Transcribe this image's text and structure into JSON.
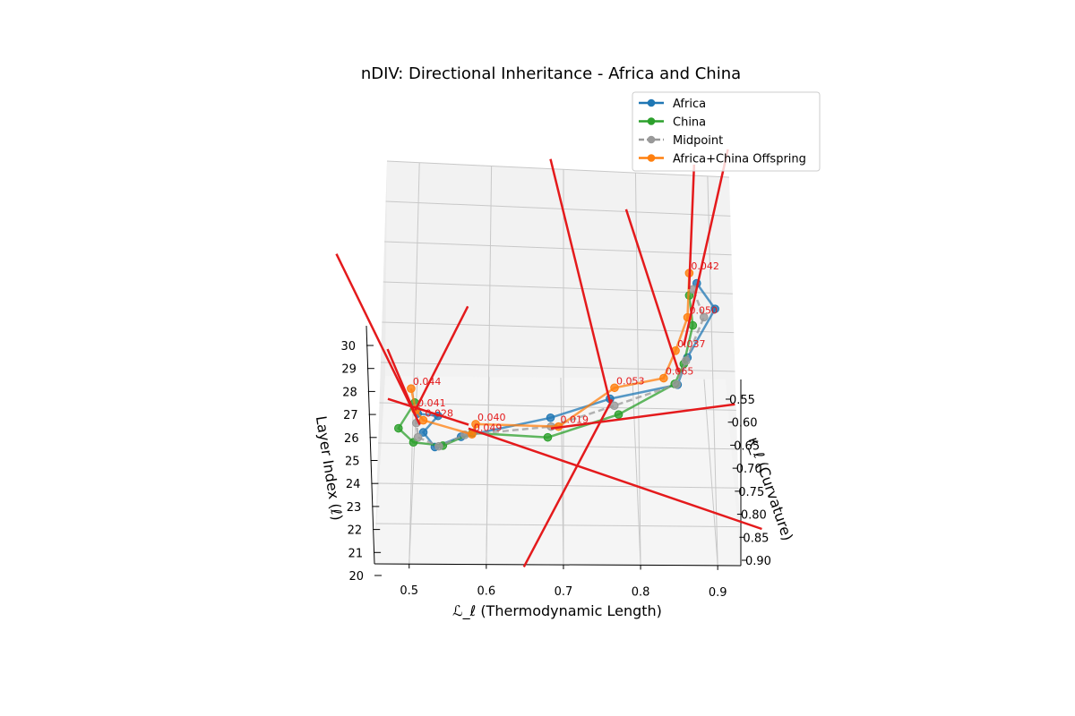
{
  "chart_data": {
    "type": "line",
    "title": "nDIV: Directional Inheritance - Africa and China",
    "xlabel": "ℒ_ℓ (Thermodynamic Length)",
    "ylabel": "κ_ℓ (Curvature)",
    "zlabel": "Layer Index (ℓ)",
    "xlim": [
      0.455,
      0.93
    ],
    "ylim": [
      0.53,
      0.91
    ],
    "zlim": [
      20,
      30
    ],
    "x_ticks": [
      "0.5",
      "0.6",
      "0.7",
      "0.8",
      "0.9"
    ],
    "y_ticks": [
      "0.55",
      "0.60",
      "0.65",
      "0.70",
      "0.75",
      "0.80",
      "0.85",
      "0.90"
    ],
    "z_ticks": [
      "20",
      "21",
      "22",
      "23",
      "24",
      "25",
      "26",
      "27",
      "28",
      "29",
      "30"
    ],
    "grid": true,
    "legend_position": "top-right",
    "series": [
      {
        "name": "Africa",
        "color": "#1f77b4",
        "style": "solid",
        "points": [
          [
            0.515,
            0.56,
            27.0
          ],
          [
            0.54,
            0.6,
            27.0
          ],
          [
            0.52,
            0.62,
            26.2
          ],
          [
            0.535,
            0.64,
            25.5
          ],
          [
            0.57,
            0.63,
            26.0
          ],
          [
            0.69,
            0.6,
            26.9
          ],
          [
            0.77,
            0.57,
            27.8
          ],
          [
            0.86,
            0.56,
            28.5
          ],
          [
            0.87,
            0.59,
            30.0
          ],
          [
            0.905,
            0.58,
            32.5
          ],
          [
            0.88,
            0.57,
            33.8
          ]
        ]
      },
      {
        "name": "China",
        "color": "#2ca02c",
        "style": "solid",
        "points": [
          [
            0.51,
            0.57,
            27.6
          ],
          [
            0.485,
            0.65,
            26.5
          ],
          [
            0.505,
            0.66,
            25.8
          ],
          [
            0.545,
            0.65,
            25.6
          ],
          [
            0.585,
            0.63,
            26.2
          ],
          [
            0.685,
            0.64,
            26.0
          ],
          [
            0.78,
            0.61,
            27.1
          ],
          [
            0.855,
            0.58,
            28.6
          ],
          [
            0.865,
            0.6,
            29.7
          ],
          [
            0.875,
            0.6,
            31.7
          ],
          [
            0.87,
            0.58,
            33.2
          ]
        ]
      },
      {
        "name": "Midpoint",
        "color": "#999999",
        "style": "dashed",
        "points": [
          [
            0.512,
            0.565,
            27.3
          ],
          [
            0.51,
            0.625,
            26.7
          ],
          [
            0.512,
            0.64,
            26.0
          ],
          [
            0.54,
            0.645,
            25.55
          ],
          [
            0.575,
            0.63,
            26.1
          ],
          [
            0.69,
            0.62,
            26.5
          ],
          [
            0.775,
            0.59,
            27.5
          ],
          [
            0.858,
            0.57,
            28.55
          ],
          [
            0.868,
            0.595,
            29.85
          ],
          [
            0.89,
            0.59,
            32.1
          ],
          [
            0.875,
            0.575,
            33.5
          ]
        ]
      },
      {
        "name": "Africa+China Offspring",
        "color": "#ff7f0e",
        "style": "solid",
        "points": [
          [
            0.505,
            0.56,
            28.3
          ],
          [
            0.51,
            0.6,
            27.3
          ],
          [
            0.52,
            0.61,
            26.8
          ],
          [
            0.585,
            0.62,
            26.1
          ],
          [
            0.59,
            0.61,
            26.6
          ],
          [
            0.7,
            0.62,
            26.5
          ],
          [
            0.775,
            0.58,
            28.4
          ],
          [
            0.84,
            0.58,
            28.9
          ],
          [
            0.855,
            0.57,
            30.3
          ],
          [
            0.87,
            0.56,
            32.0
          ],
          [
            0.87,
            0.56,
            34.3
          ]
        ]
      }
    ],
    "annotations": [
      {
        "text": "0.044",
        "point": 0
      },
      {
        "text": "0.041",
        "point": 1
      },
      {
        "text": "0.028",
        "point": 2
      },
      {
        "text": "0.049",
        "point": 3
      },
      {
        "text": "0.040",
        "point": 4
      },
      {
        "text": "0.019",
        "point": 5
      },
      {
        "text": "0.053",
        "point": 6
      },
      {
        "text": "0.065",
        "point": 7
      },
      {
        "text": "0.037",
        "point": 8
      },
      {
        "text": "0.050",
        "point": 9
      },
      {
        "text": "0.042",
        "point": 10
      }
    ],
    "deviation_arrows": [
      {
        "from": [
          0.511,
          0.57,
          27.2
        ],
        "to": [
          0.58,
          0.5,
          32.4
        ]
      },
      {
        "from": [
          0.51,
          0.61,
          27.0
        ],
        "to": [
          0.455,
          0.85,
          31.2
        ]
      },
      {
        "from": [
          0.515,
          0.62,
          26.6
        ],
        "to": [
          0.385,
          0.8,
          36.0
        ]
      },
      {
        "from": [
          0.58,
          0.62,
          26.4
        ],
        "to": [
          0.96,
          0.9,
          22.0
        ]
      },
      {
        "from": [
          0.58,
          0.62,
          26.6
        ],
        "to": [
          0.47,
          0.64,
          28.0
        ]
      },
      {
        "from": [
          0.69,
          0.62,
          26.4
        ],
        "to": [
          0.935,
          0.6,
          27.6
        ]
      },
      {
        "from": [
          0.772,
          0.585,
          27.8
        ],
        "to": [
          0.655,
          0.72,
          19.5
        ]
      },
      {
        "from": [
          0.77,
          0.58,
          27.6
        ],
        "to": [
          0.68,
          0.55,
          40.2
        ]
      },
      {
        "from": [
          0.86,
          0.58,
          29.2
        ],
        "to": [
          0.785,
          0.52,
          37.5
        ]
      },
      {
        "from": [
          0.865,
          0.585,
          30.6
        ],
        "to": [
          0.92,
          0.48,
          40.5
        ]
      },
      {
        "from": [
          0.87,
          0.57,
          33.5
        ],
        "to": [
          0.87,
          0.58,
          40.0
        ]
      }
    ],
    "legend": [
      {
        "label": "Africa",
        "color": "#1f77b4",
        "style": "solid"
      },
      {
        "label": "China",
        "color": "#2ca02c",
        "style": "solid"
      },
      {
        "label": "Midpoint",
        "color": "#999999",
        "style": "dashed"
      },
      {
        "label": "Africa+China Offspring",
        "color": "#ff7f0e",
        "style": "solid"
      }
    ],
    "arrow_color": "#e41a1c"
  }
}
